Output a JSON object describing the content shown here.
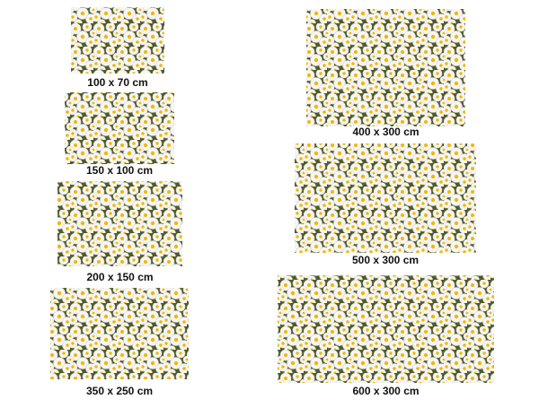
{
  "sizes": [
    {
      "label": "100 x 70 cm"
    },
    {
      "label": "150 x 100 cm"
    },
    {
      "label": "200 x 150 cm"
    },
    {
      "label": "350 x 250 cm"
    },
    {
      "label": "400 x 300 cm"
    },
    {
      "label": "500 x 300 cm"
    },
    {
      "label": "600 x 300 cm"
    }
  ]
}
